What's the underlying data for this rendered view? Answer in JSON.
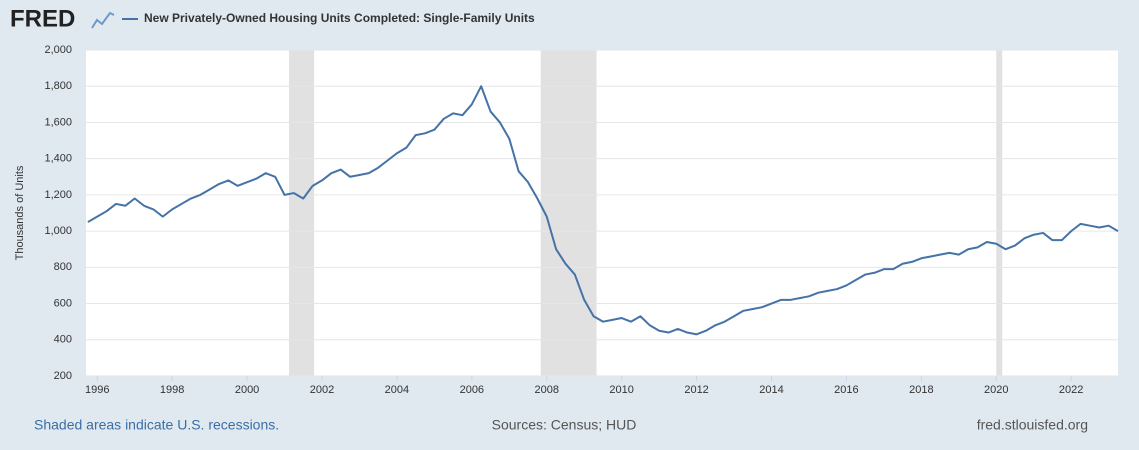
{
  "chart_data": {
    "type": "line",
    "logo": "FRED",
    "y_label": "Thousands of Units",
    "footer_left": "Shaded areas indicate U.S. recessions.",
    "footer_center": "Sources: Census; HUD",
    "footer_right": "fred.stlouisfed.org",
    "x": [
      1995.75,
      1996,
      1996.25,
      1996.5,
      1996.75,
      1997,
      1997.25,
      1997.5,
      1997.75,
      1998,
      1998.25,
      1998.5,
      1998.75,
      1999,
      1999.25,
      1999.5,
      1999.75,
      2000,
      2000.25,
      2000.5,
      2000.75,
      2001,
      2001.25,
      2001.5,
      2001.75,
      2002,
      2002.25,
      2002.5,
      2002.75,
      2003,
      2003.25,
      2003.5,
      2003.75,
      2004,
      2004.25,
      2004.5,
      2004.75,
      2005,
      2005.25,
      2005.5,
      2005.75,
      2006,
      2006.25,
      2006.5,
      2006.75,
      2007,
      2007.25,
      2007.5,
      2007.75,
      2008,
      2008.25,
      2008.5,
      2008.75,
      2009,
      2009.25,
      2009.5,
      2009.75,
      2010,
      2010.25,
      2010.5,
      2010.75,
      2011,
      2011.25,
      2011.5,
      2011.75,
      2012,
      2012.25,
      2012.5,
      2012.75,
      2013,
      2013.25,
      2013.5,
      2013.75,
      2014,
      2014.25,
      2014.5,
      2014.75,
      2015,
      2015.25,
      2015.5,
      2015.75,
      2016,
      2016.25,
      2016.5,
      2016.75,
      2017,
      2017.25,
      2017.5,
      2017.75,
      2018,
      2018.25,
      2018.5,
      2018.75,
      2019,
      2019.25,
      2019.5,
      2019.75,
      2020,
      2020.25,
      2020.5,
      2020.75,
      2021,
      2021.25,
      2021.5,
      2021.75,
      2022,
      2022.25,
      2022.5,
      2022.75,
      2023,
      2023.25
    ],
    "series": [
      {
        "name": "New Privately-Owned Housing Units Completed: Single-Family Units",
        "color": "#4572a7",
        "values": [
          1050,
          1080,
          1110,
          1150,
          1140,
          1180,
          1140,
          1120,
          1080,
          1120,
          1150,
          1180,
          1200,
          1230,
          1260,
          1280,
          1250,
          1270,
          1290,
          1320,
          1300,
          1200,
          1210,
          1180,
          1250,
          1280,
          1320,
          1340,
          1300,
          1310,
          1320,
          1350,
          1390,
          1430,
          1460,
          1530,
          1540,
          1560,
          1620,
          1650,
          1640,
          1700,
          1800,
          1660,
          1600,
          1510,
          1330,
          1270,
          1180,
          1080,
          900,
          820,
          760,
          620,
          530,
          500,
          510,
          520,
          500,
          530,
          480,
          450,
          440,
          460,
          440,
          430,
          450,
          480,
          500,
          530,
          560,
          570,
          580,
          600,
          620,
          620,
          630,
          640,
          660,
          670,
          680,
          700,
          730,
          760,
          770,
          790,
          790,
          820,
          830,
          850,
          860,
          870,
          880,
          870,
          900,
          910,
          940,
          930,
          900,
          920,
          960,
          980,
          990,
          950,
          950,
          1000,
          1040,
          1030,
          1020,
          1030,
          1000
        ]
      }
    ],
    "recessions": [
      [
        2001.12,
        2001.79
      ],
      [
        2007.84,
        2009.33
      ],
      [
        2020.0,
        2020.16
      ]
    ],
    "xlim": [
      1995.7,
      2023.25
    ],
    "xticks": [
      1996,
      1998,
      2000,
      2002,
      2004,
      2006,
      2008,
      2010,
      2012,
      2014,
      2016,
      2018,
      2020,
      2022
    ],
    "ylim": [
      200,
      2000
    ],
    "yticks": [
      200,
      400,
      600,
      800,
      {
        "value": 1000,
        "label": "1,000"
      },
      {
        "value": 1200,
        "label": "1,200"
      },
      {
        "value": 1400,
        "label": "1,400"
      },
      {
        "value": 1600,
        "label": "1,600"
      },
      {
        "value": 1800,
        "label": "1,800"
      },
      {
        "value": 2000,
        "label": "2,000"
      }
    ],
    "grid": true
  }
}
